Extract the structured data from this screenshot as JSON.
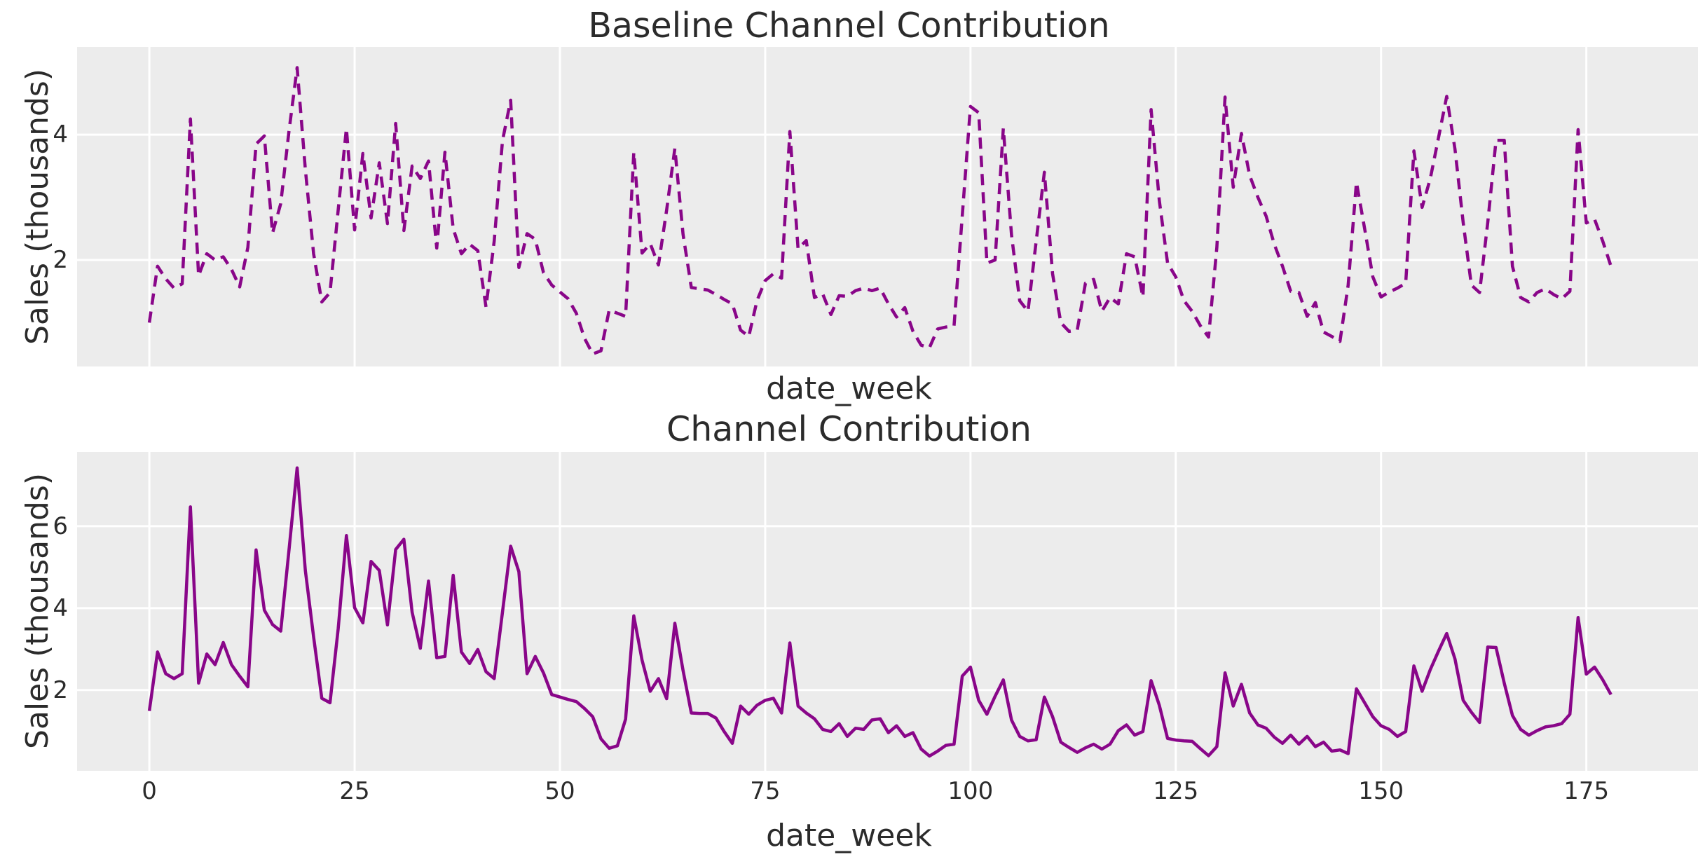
{
  "figure": {
    "background": "#ffffff",
    "axes_background": "#ECECEC",
    "grid_color": "#ffffff",
    "text_color": "#2b2b2b",
    "line_color": "#890689"
  },
  "chart_data": [
    {
      "type": "line",
      "title": "Baseline Channel Contribution",
      "xlabel": "date_week",
      "ylabel": "Sales (thousands)",
      "line_style": "dashed",
      "line_color": "#890689",
      "grid": true,
      "legend": "none",
      "xlim": [
        -8.8,
        188.6
      ],
      "ylim": [
        0.3,
        5.4
      ],
      "xticks": [
        0,
        25,
        50,
        75,
        100,
        125,
        150,
        175
      ],
      "show_xtick_labels": false,
      "yticks": [
        2,
        4
      ],
      "x_start": 0,
      "x_step": 1,
      "values": [
        1.0,
        1.9,
        1.7,
        1.55,
        1.62,
        4.25,
        1.75,
        2.1,
        2.0,
        2.05,
        1.85,
        1.57,
        2.2,
        3.85,
        3.98,
        2.43,
        2.9,
        4.05,
        5.07,
        3.45,
        2.1,
        1.33,
        1.48,
        2.8,
        4.1,
        2.48,
        3.7,
        2.67,
        3.55,
        2.58,
        4.18,
        2.47,
        3.5,
        3.3,
        3.58,
        2.19,
        3.72,
        2.5,
        2.1,
        2.25,
        2.15,
        1.25,
        2.3,
        3.9,
        4.55,
        1.88,
        2.42,
        2.33,
        1.8,
        1.6,
        1.49,
        1.38,
        1.15,
        0.75,
        0.5,
        0.55,
        1.2,
        1.15,
        1.1,
        3.72,
        2.11,
        2.26,
        1.92,
        2.8,
        3.78,
        2.41,
        1.56,
        1.54,
        1.52,
        1.45,
        1.37,
        1.3,
        0.88,
        0.78,
        1.35,
        1.67,
        1.78,
        1.71,
        4.05,
        2.18,
        2.31,
        1.4,
        1.46,
        1.13,
        1.43,
        1.42,
        1.51,
        1.55,
        1.51,
        1.55,
        1.3,
        1.09,
        1.24,
        0.86,
        0.64,
        0.6,
        0.9,
        0.93,
        0.95,
        2.7,
        4.45,
        4.35,
        1.95,
        2.0,
        4.1,
        2.4,
        1.35,
        1.18,
        2.3,
        3.4,
        1.78,
        1.0,
        0.86,
        0.88,
        1.63,
        1.69,
        1.18,
        1.4,
        1.3,
        2.1,
        2.05,
        1.41,
        4.4,
        2.95,
        1.95,
        1.73,
        1.35,
        1.18,
        0.95,
        0.77,
        2.2,
        4.6,
        3.16,
        4.02,
        3.35,
        3.0,
        2.7,
        2.25,
        1.9,
        1.5,
        1.48,
        1.1,
        1.32,
        0.85,
        0.78,
        0.7,
        1.6,
        3.24,
        2.5,
        1.73,
        1.41,
        1.49,
        1.55,
        1.63,
        3.74,
        2.84,
        3.3,
        3.95,
        4.61,
        3.77,
        2.6,
        1.6,
        1.48,
        2.6,
        3.91,
        3.91,
        1.9,
        1.4,
        1.33,
        1.48,
        1.54,
        1.45,
        1.38,
        1.5,
        4.08,
        2.59,
        2.65,
        2.3,
        1.9
      ]
    },
    {
      "type": "line",
      "title": "Channel Contribution",
      "xlabel": "date_week",
      "ylabel": "Sales (thousands)",
      "line_style": "solid",
      "line_color": "#890689",
      "grid": true,
      "legend": "none",
      "xlim": [
        -8.8,
        188.6
      ],
      "ylim": [
        0.03,
        7.81
      ],
      "xticks": [
        0,
        25,
        50,
        75,
        100,
        125,
        150,
        175
      ],
      "show_xtick_labels": true,
      "yticks": [
        2,
        4,
        6
      ],
      "x_start": 0,
      "x_step": 1,
      "values": [
        1.49,
        2.93,
        2.4,
        2.28,
        2.4,
        6.47,
        2.17,
        2.88,
        2.62,
        3.16,
        2.62,
        2.34,
        2.08,
        5.42,
        3.95,
        3.6,
        3.44,
        5.4,
        7.42,
        4.92,
        3.3,
        1.8,
        1.69,
        3.5,
        5.77,
        4.01,
        3.64,
        5.14,
        4.92,
        3.59,
        5.43,
        5.68,
        3.9,
        3.02,
        4.66,
        2.79,
        2.82,
        4.8,
        2.93,
        2.65,
        2.99,
        2.45,
        2.28,
        3.9,
        5.51,
        4.89,
        2.4,
        2.82,
        2.42,
        1.89,
        1.83,
        1.77,
        1.72,
        1.55,
        1.35,
        0.81,
        0.58,
        0.64,
        1.29,
        3.81,
        2.73,
        1.97,
        2.28,
        1.79,
        3.63,
        2.48,
        1.44,
        1.43,
        1.43,
        1.32,
        0.99,
        0.7,
        1.61,
        1.41,
        1.63,
        1.75,
        1.8,
        1.44,
        3.15,
        1.61,
        1.44,
        1.3,
        1.04,
        0.99,
        1.18,
        0.87,
        1.07,
        1.04,
        1.27,
        1.3,
        0.96,
        1.13,
        0.87,
        0.96,
        0.56,
        0.39,
        0.51,
        0.65,
        0.68,
        2.34,
        2.56,
        1.75,
        1.41,
        1.85,
        2.25,
        1.27,
        0.87,
        0.76,
        0.79,
        1.83,
        1.35,
        0.73,
        0.6,
        0.48,
        0.59,
        0.68,
        0.56,
        0.68,
        1.01,
        1.15,
        0.9,
        0.99,
        2.23,
        1.63,
        0.82,
        0.78,
        0.76,
        0.75,
        0.57,
        0.4,
        0.62,
        2.42,
        1.61,
        2.14,
        1.44,
        1.15,
        1.07,
        0.85,
        0.7,
        0.9,
        0.68,
        0.87,
        0.62,
        0.73,
        0.51,
        0.54,
        0.45,
        2.03,
        1.69,
        1.35,
        1.13,
        1.04,
        0.87,
        0.99,
        2.59,
        1.97,
        2.5,
        2.95,
        3.38,
        2.76,
        1.75,
        1.46,
        1.21,
        3.05,
        3.04,
        2.17,
        1.38,
        1.04,
        0.9,
        1.01,
        1.1,
        1.13,
        1.18,
        1.41,
        3.77,
        2.39,
        2.56,
        2.25,
        1.89
      ]
    }
  ]
}
